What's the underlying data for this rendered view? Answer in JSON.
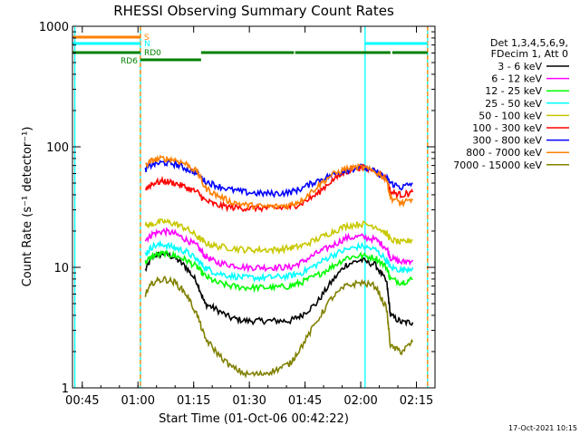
{
  "chart_data": {
    "type": "line",
    "title": "RHESSI Observing Summary Count Rates",
    "xlabel": "Start Time (01-Oct-06 00:42:22)",
    "ylabel": "Count Rate (s⁻¹ detector⁻¹)",
    "y_scale": "log",
    "ylim": [
      1,
      1000
    ],
    "x_unit": "UT time (hh:mm) on 01-Oct-06",
    "xlim": [
      "00:42:22",
      "02:20:00"
    ],
    "x_ticks": [
      "00:45",
      "01:00",
      "01:15",
      "01:30",
      "01:45",
      "02:00",
      "02:15"
    ],
    "y_ticks": [
      "1",
      "10",
      "100",
      "1000"
    ],
    "grid": false,
    "legend_position": "right",
    "legend_header": [
      "Det 1,3,4,5,6,9,",
      "FDecim 1, Att 0"
    ],
    "footer_timestamp": "17-Oct-2021 10:15",
    "flags": [
      {
        "label": "S",
        "color": "#ff8000",
        "segments": [
          [
            "00:42:22",
            "01:00:40"
          ]
        ]
      },
      {
        "label": "N",
        "color": "#00ffff",
        "segments": [
          [
            "00:42:22",
            "01:00:40"
          ],
          [
            "02:01:10",
            "02:18:00"
          ]
        ]
      },
      {
        "label": "RD0",
        "color": "#008000",
        "segments": [
          [
            "00:42:22",
            "01:00:40"
          ],
          [
            "01:17:00",
            "01:42:00"
          ],
          [
            "01:42:20",
            "02:08:00"
          ],
          [
            "02:08:30",
            "02:18:00"
          ]
        ]
      },
      {
        "label": "RD6",
        "color": "#008000",
        "segments": [
          [
            "01:00:40",
            "01:17:00"
          ]
        ]
      }
    ],
    "vertical_markers": [
      {
        "time": "00:43:00",
        "color": "#00ffff",
        "style": "solid"
      },
      {
        "time": "01:00:40",
        "color": "#00ffff",
        "style": "solid"
      },
      {
        "time": "01:00:40",
        "color": "#ff8000",
        "style": "dashed"
      },
      {
        "time": "02:01:10",
        "color": "#00ffff",
        "style": "solid"
      },
      {
        "time": "02:18:00",
        "color": "#00ffff",
        "style": "solid"
      },
      {
        "time": "02:18:00",
        "color": "#ff8000",
        "style": "dashed"
      }
    ],
    "x": [
      "01:02",
      "01:04",
      "01:07",
      "01:10",
      "01:13",
      "01:16",
      "01:18",
      "01:21",
      "01:25",
      "01:29",
      "01:33",
      "01:37",
      "01:41",
      "01:44",
      "01:48",
      "01:52",
      "01:56",
      "02:00",
      "02:04",
      "02:07",
      "02:08",
      "02:11",
      "02:14"
    ],
    "series": [
      {
        "name": "3 - 6 keV",
        "color": "#000000",
        "values": [
          9.5,
          12.5,
          13,
          12,
          10,
          7.5,
          5,
          4.5,
          3.8,
          3.6,
          3.6,
          3.6,
          3.6,
          4,
          5,
          7.5,
          10.5,
          11.5,
          10.5,
          7.5,
          4,
          3.5,
          3.5
        ]
      },
      {
        "name": "6 - 12 keV",
        "color": "#ff00ff",
        "values": [
          17,
          19,
          20,
          19,
          17,
          15,
          12.5,
          11,
          10.5,
          10,
          10,
          10,
          10,
          11,
          13,
          15,
          17.5,
          18,
          17,
          14.5,
          12,
          11,
          11.5
        ]
      },
      {
        "name": "12 - 25 keV",
        "color": "#00ff00",
        "values": [
          11,
          12.5,
          13,
          12.5,
          11.5,
          10,
          8.5,
          7.5,
          7,
          6.8,
          6.8,
          6.8,
          7,
          7.5,
          8.5,
          10,
          12,
          12.5,
          12,
          10,
          8,
          7.5,
          8
        ]
      },
      {
        "name": "25 - 50 keV",
        "color": "#00ffff",
        "values": [
          13,
          15,
          15.5,
          14.5,
          13.5,
          11.5,
          10,
          9,
          8.5,
          8.2,
          8.2,
          8.3,
          8.5,
          9,
          10.5,
          12.5,
          14,
          15,
          14,
          11.5,
          10,
          9.5,
          10
        ]
      },
      {
        "name": "50 - 100 keV",
        "color": "#c8c800",
        "values": [
          22,
          23,
          24,
          23,
          21,
          18,
          16,
          15,
          14.5,
          14,
          14,
          14,
          14.5,
          15,
          17,
          19.5,
          22,
          23,
          22,
          19,
          17,
          16,
          17
        ]
      },
      {
        "name": "100 - 300 keV",
        "color": "#ff0000",
        "values": [
          45,
          50,
          52,
          50,
          46,
          42,
          36,
          33,
          31.5,
          31,
          31,
          31,
          31.5,
          34,
          40,
          52,
          62,
          68,
          63,
          55,
          42,
          40,
          42
        ]
      },
      {
        "name": "300 - 800 keV",
        "color": "#0000ff",
        "values": [
          65,
          72,
          74,
          72,
          66,
          60,
          52,
          48,
          44,
          42,
          41,
          41,
          42,
          45,
          52,
          58,
          64,
          68,
          62,
          55,
          50,
          46,
          50
        ]
      },
      {
        "name": "800 - 7000 keV",
        "color": "#ff8000",
        "values": [
          70,
          78,
          80,
          78,
          72,
          62,
          46,
          40,
          35,
          33,
          32,
          32,
          33,
          36,
          46,
          58,
          66,
          68,
          62,
          54,
          38,
          34,
          36
        ]
      },
      {
        "name": "7000 - 15000 keV",
        "color": "#808000",
        "values": [
          6,
          7.5,
          8,
          7.5,
          6,
          4,
          2.6,
          2,
          1.5,
          1.3,
          1.3,
          1.4,
          1.6,
          2.2,
          3.5,
          5.5,
          7,
          7.5,
          7,
          4.5,
          2.2,
          2,
          2.4
        ]
      }
    ]
  }
}
